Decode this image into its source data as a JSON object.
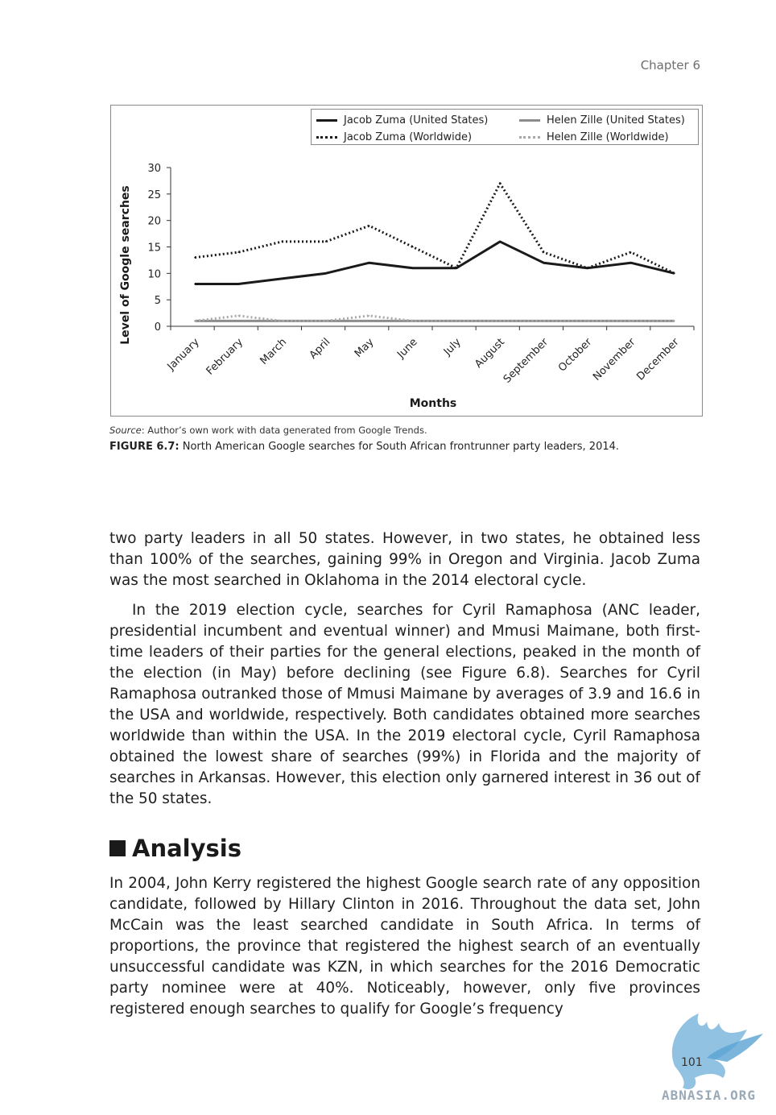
{
  "header": {
    "chapter": "Chapter 6"
  },
  "figure": {
    "source_prefix": "Source",
    "source_rest": ": Author’s own work with data generated from Google Trends.",
    "caption_label": "FIGURE 6.7:",
    "caption_text": " North American Google searches for South African frontrunner party leaders, 2014."
  },
  "chart_data": {
    "type": "line",
    "xlabel": "Months",
    "ylabel": "Level of Google searches",
    "ylim": [
      0,
      30
    ],
    "yticks": [
      0,
      5,
      10,
      15,
      20,
      25,
      30
    ],
    "legend_position": "top-right",
    "grid": false,
    "categories": [
      "January",
      "February",
      "March",
      "April",
      "May",
      "June",
      "July",
      "August",
      "September",
      "October",
      "November",
      "December"
    ],
    "series": [
      {
        "name": "Jacob Zuma (United States)",
        "color": "#1a1a1a",
        "style": "solid",
        "values": [
          8,
          8,
          9,
          10,
          12,
          11,
          11,
          16,
          12,
          11,
          12,
          10
        ]
      },
      {
        "name": "Jacob Zuma (Worldwide)",
        "color": "#1a1a1a",
        "style": "dotted",
        "values": [
          13,
          14,
          16,
          16,
          19,
          15,
          11,
          27,
          14,
          11,
          14,
          10
        ]
      },
      {
        "name": "Helen Zille (United States)",
        "color": "#8c8c8c",
        "style": "solid",
        "values": [
          1,
          1,
          1,
          1,
          1,
          1,
          1,
          1,
          1,
          1,
          1,
          1
        ]
      },
      {
        "name": "Helen Zille (Worldwide)",
        "color": "#a8a8a8",
        "style": "dotted",
        "values": [
          1,
          2,
          1,
          1,
          2,
          1,
          1,
          1,
          1,
          1,
          1,
          1
        ]
      }
    ]
  },
  "body": {
    "p1": "two party leaders in all 50 states. However, in two states, he obtained less than 100% of the searches, gaining 99% in Oregon and Virginia. Jacob Zuma was the most searched in Oklahoma in the 2014 electoral cycle.",
    "p2": "In the 2019 election cycle, searches for Cyril Ramaphosa (ANC leader, presidential incumbent and eventual winner) and Mmusi Maimane, both first-time leaders of their parties for the general elections, peaked in the month of the election (in May) before declining (see Figure 6.8). Searches for Cyril Ramaphosa outranked those of Mmusi Maimane by averages of 3.9 and 16.6 in the USA and worldwide, respectively. Both candidates obtained more searches worldwide than within the USA. In the 2019 electoral cycle, Cyril Ramaphosa obtained the lowest share of searches (99%) in Florida and the majority of searches in Arkansas. However, this election only garnered interest in 36 out of the 50 states.",
    "heading": "Analysis",
    "p3": "In 2004, John Kerry registered the highest Google search rate of any opposition candidate, followed by Hillary Clinton in 2016. Throughout the data set, John McCain was the least searched candidate in South Africa. In terms of proportions, the province that registered the highest search of an eventually unsuccessful candidate was KZN, in which searches for the 2016 Democratic party nominee were at 40%. Noticeably, however, only five provinces registered enough searches to qualify for Google’s frequency"
  },
  "footer": {
    "page_number": "101",
    "watermark": "ABNASIA.ORG"
  }
}
